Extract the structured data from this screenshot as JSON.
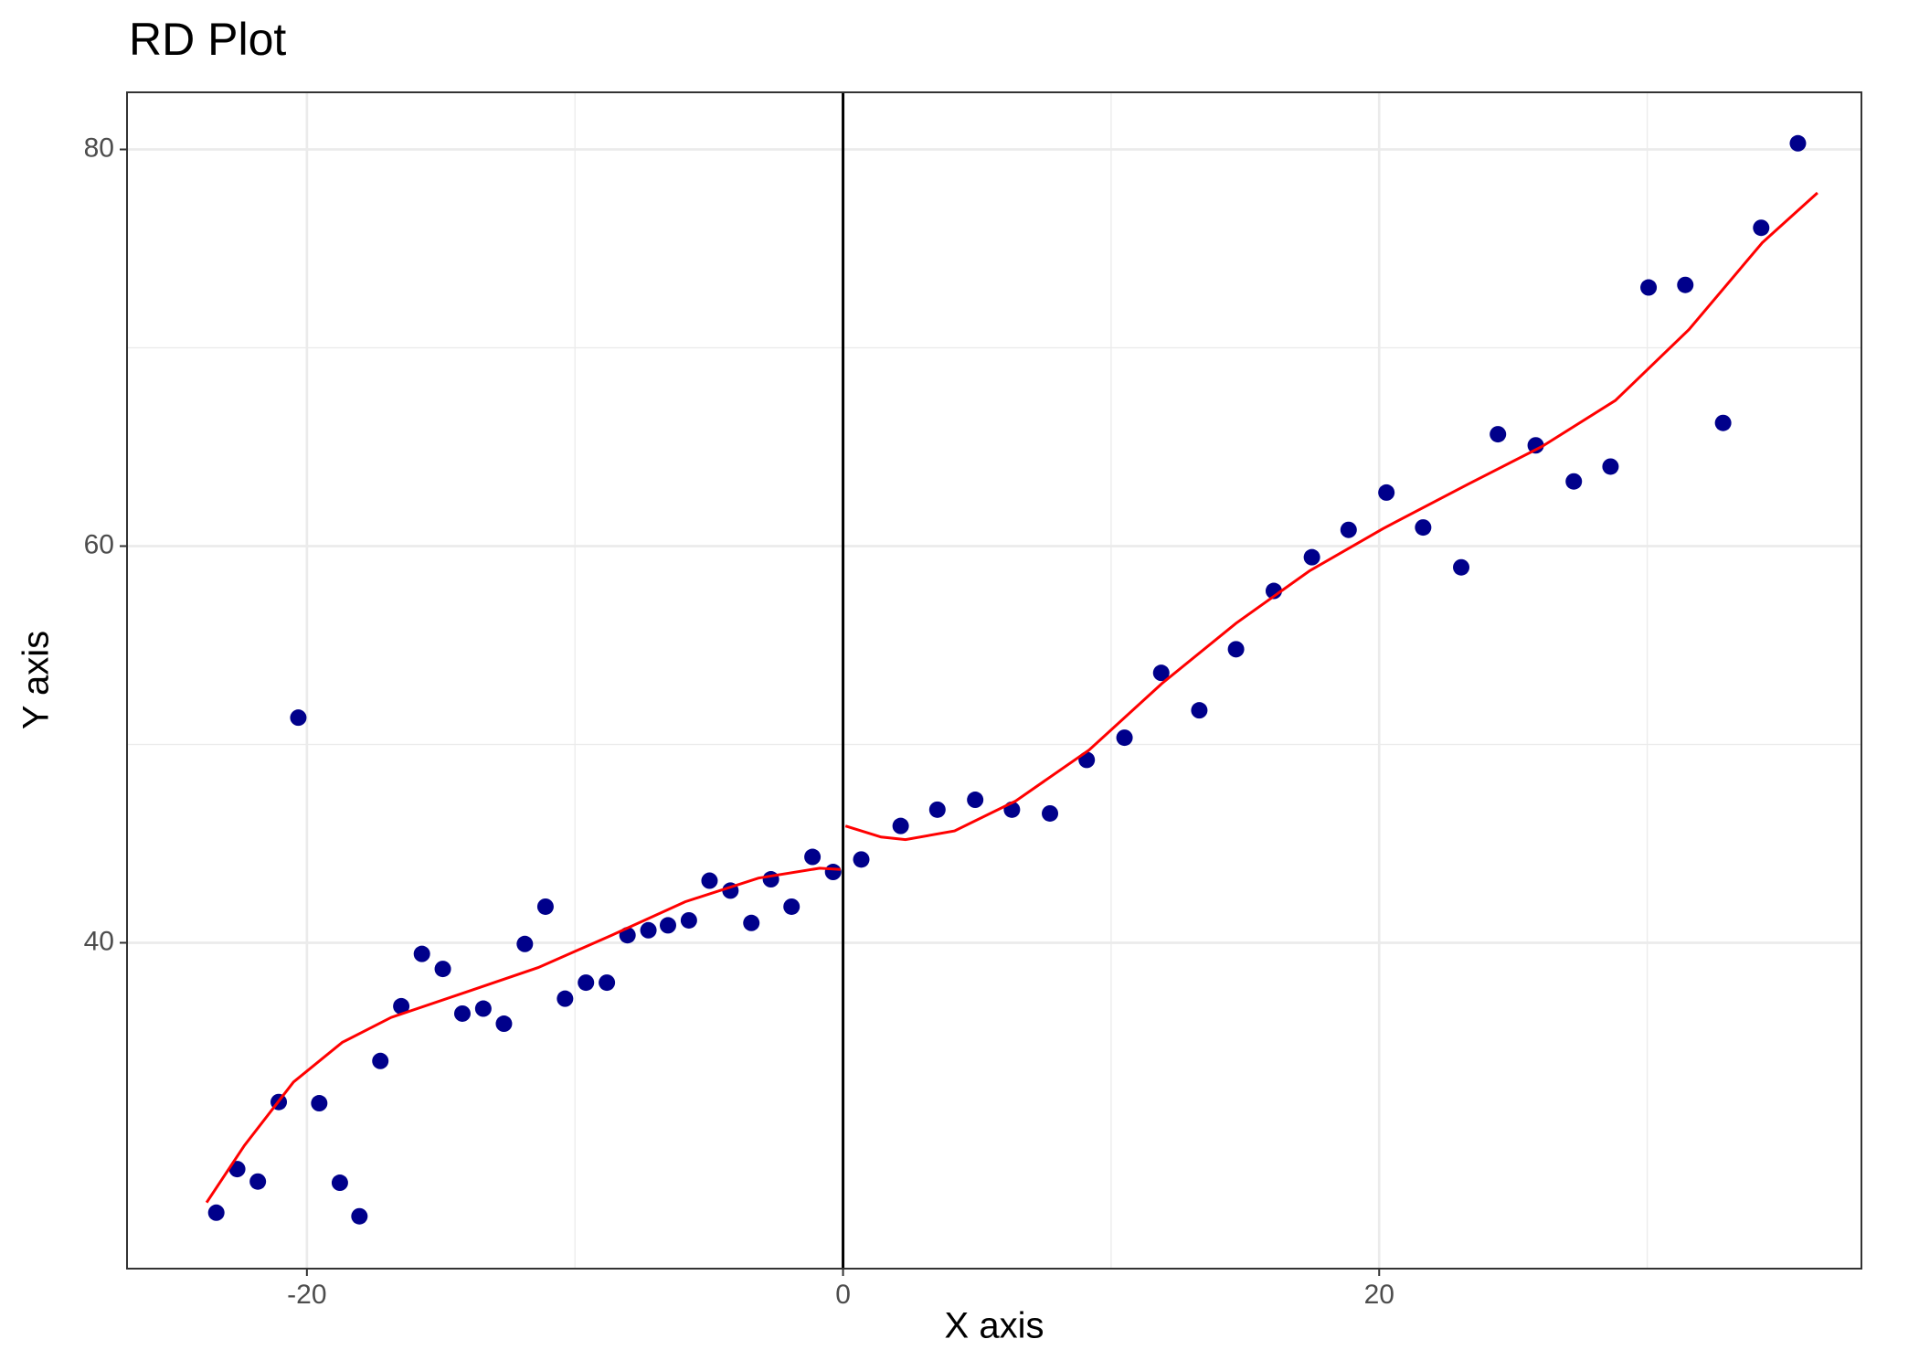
{
  "chart_data": {
    "type": "scatter",
    "title": "RD Plot",
    "x_label": "X axis",
    "y_label": "Y axis",
    "xlim": [
      -26.71,
      37.99
    ],
    "ylim": [
      23.57,
      82.88
    ],
    "xticks": [
      -20,
      0,
      20
    ],
    "yticks": [
      40,
      60,
      80
    ],
    "x_minor_grid": [
      -10,
      10,
      30
    ],
    "y_minor_grid": [
      50,
      70
    ],
    "grid": true,
    "cutoff": 0,
    "cutoff_color": "#000000",
    "points": {
      "color": "#00008b",
      "x": [
        -23.38,
        -22.6,
        -21.83,
        -21.05,
        -20.32,
        -19.54,
        -18.77,
        -18.04,
        -17.26,
        -16.48,
        -15.71,
        -14.93,
        -14.2,
        -13.42,
        -12.65,
        -11.87,
        -11.1,
        -10.37,
        -9.59,
        -8.81,
        -8.04,
        -7.26,
        -6.53,
        -5.75,
        -4.98,
        -4.2,
        -3.42,
        -2.69,
        -1.92,
        -1.14,
        -0.37,
        0.68,
        2.15,
        3.52,
        4.93,
        6.3,
        7.72,
        9.09,
        10.5,
        11.87,
        13.29,
        14.66,
        16.07,
        17.49,
        18.86,
        20.27,
        21.64,
        23.06,
        24.43,
        25.84,
        27.26,
        28.63,
        30.05,
        31.42,
        32.83,
        34.25,
        35.62
      ],
      "y": [
        26.39,
        28.59,
        27.96,
        31.97,
        51.35,
        31.91,
        27.9,
        26.21,
        34.04,
        36.8,
        39.44,
        38.68,
        36.43,
        36.68,
        35.92,
        39.94,
        41.82,
        37.18,
        37.99,
        37.99,
        40.38,
        40.63,
        40.88,
        41.13,
        43.13,
        42.63,
        41.0,
        43.2,
        41.82,
        44.33,
        43.57,
        44.2,
        45.89,
        46.71,
        47.21,
        46.71,
        46.52,
        49.22,
        50.34,
        53.61,
        51.72,
        54.8,
        57.74,
        59.44,
        60.82,
        62.7,
        60.94,
        58.93,
        65.64,
        65.08,
        63.26,
        64.01,
        73.04,
        73.17,
        66.21,
        76.05,
        80.31
      ]
    },
    "fits": [
      {
        "color": "#ff0000",
        "x": [
          -23.74,
          -22.33,
          -20.5,
          -18.68,
          -16.85,
          -14.11,
          -11.37,
          -8.63,
          -5.89,
          -3.15,
          -0.87,
          -0.09
        ],
        "y": [
          26.9,
          29.78,
          32.98,
          34.98,
          36.24,
          37.49,
          38.75,
          40.38,
          42.07,
          43.26,
          43.76,
          43.7
        ]
      },
      {
        "color": "#ff0000",
        "x": [
          0.09,
          1.42,
          2.33,
          4.16,
          6.44,
          9.18,
          11.92,
          14.66,
          17.4,
          20.14,
          23.33,
          26.07,
          28.81,
          31.55,
          34.29,
          36.35
        ],
        "y": [
          45.89,
          45.33,
          45.2,
          45.64,
          47.15,
          49.72,
          53.1,
          56.11,
          58.75,
          60.88,
          63.13,
          65.02,
          67.34,
          70.91,
          75.3,
          77.81
        ]
      }
    ]
  }
}
